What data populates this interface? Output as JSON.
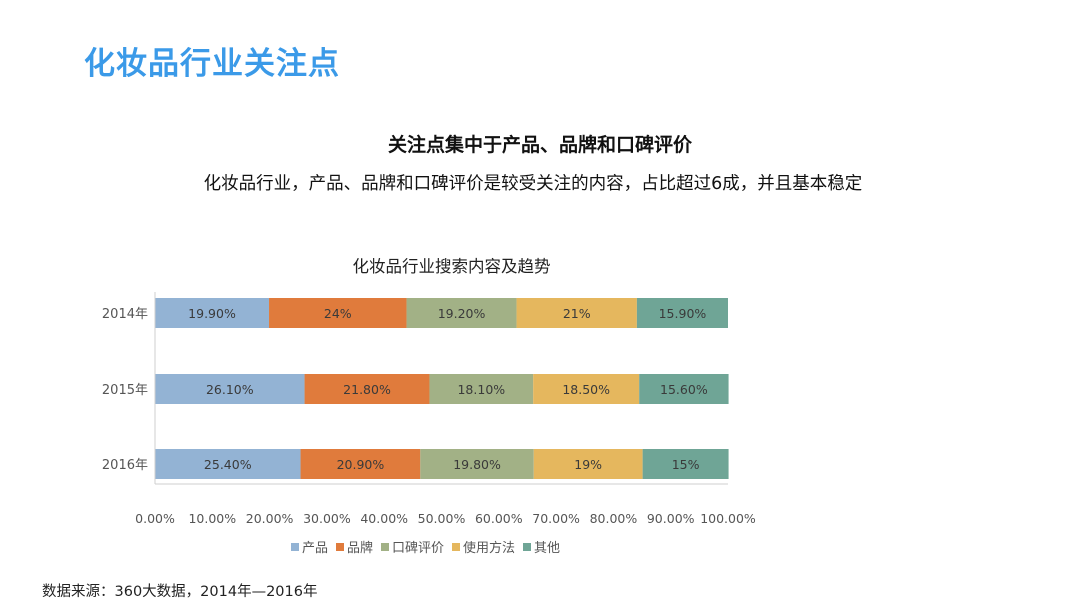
{
  "slide": {
    "title": "化妆品行业关注点",
    "headline": "关注点集中于产品、品牌和口碑评价",
    "subline": "化妆品行业，产品、品牌和口碑评价是较受关注的内容，占比超过6成，并且基本稳定",
    "source": "数据来源：360大数据，2014年—2016年"
  },
  "chart_data": {
    "type": "bar",
    "orientation": "horizontal",
    "stacked": "100%",
    "title": "化妆品行业搜索内容及趋势",
    "categories": [
      "2014年",
      "2015年",
      "2016年"
    ],
    "series": [
      {
        "name": "产品",
        "color": "#93b3d4",
        "values": [
          19.9,
          26.1,
          25.4
        ],
        "labels": [
          "19.90%",
          "26.10%",
          "25.40%"
        ]
      },
      {
        "name": "品牌",
        "color": "#e07b3c",
        "values": [
          24,
          21.8,
          20.9
        ],
        "labels": [
          "24%",
          "21.80%",
          "20.90%"
        ]
      },
      {
        "name": "口碑评价",
        "color": "#a2b186",
        "values": [
          19.2,
          18.1,
          19.8
        ],
        "labels": [
          "19.20%",
          "18.10%",
          "19.80%"
        ]
      },
      {
        "name": "使用方法",
        "color": "#e5b75e",
        "values": [
          21,
          18.5,
          19
        ],
        "labels": [
          "21%",
          "18.50%",
          "19%"
        ]
      },
      {
        "name": "其他",
        "color": "#6fa596",
        "values": [
          15.9,
          15.6,
          15
        ],
        "labels": [
          "15.90%",
          "15.60%",
          "15%"
        ]
      }
    ],
    "xlim": [
      0,
      100
    ],
    "xticks": [
      "0.00%",
      "10.00%",
      "20.00%",
      "30.00%",
      "40.00%",
      "50.00%",
      "60.00%",
      "70.00%",
      "80.00%",
      "90.00%",
      "100.00%"
    ],
    "grid": false,
    "legend": "bottom"
  }
}
